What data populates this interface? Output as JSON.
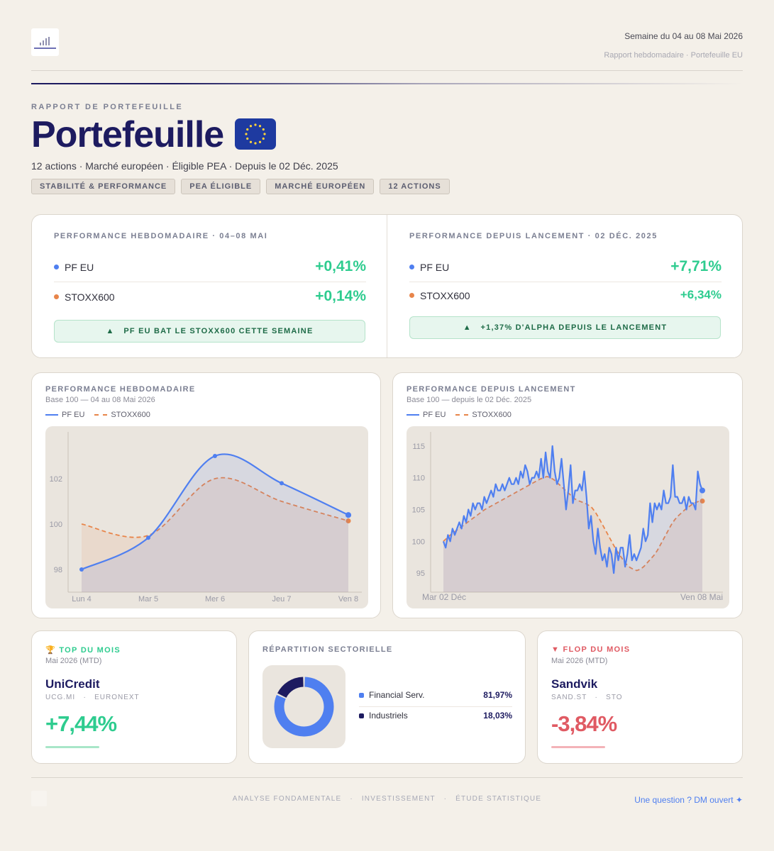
{
  "header": {
    "week": "Semaine du 04 au 08 Mai 2026",
    "subtitle": "Rapport hebdomadaire · Portefeuille EU"
  },
  "hero": {
    "eyebrow": "RAPPORT DE PORTEFEUILLE",
    "title": "Portefeuille",
    "flag_icon": "eu-flag-icon",
    "subtitle": "12 actions · Marché européen · Éligible PEA · Depuis le 02 Déc. 2025",
    "tags": [
      "STABILITÉ & PERFORMANCE",
      "PEA ÉLIGIBLE",
      "MARCHÉ EUROPÉEN",
      "12 ACTIONS"
    ]
  },
  "performance": {
    "weekly": {
      "label": "PERFORMANCE HEBDOMADAIRE · 04–08 MAI",
      "rows": [
        {
          "name": "PF EU",
          "value": "+0,41%"
        },
        {
          "name": "STOXX600",
          "value": "+0,14%"
        }
      ],
      "banner": "▲   PF EU BAT LE STOXX600 CETTE SEMAINE"
    },
    "since_launch": {
      "label": "PERFORMANCE DEPUIS LANCEMENT · 02 DÉC. 2025",
      "rows": [
        {
          "name": "PF EU",
          "value": "+7,71%"
        },
        {
          "name": "STOXX600",
          "value": "+6,34%"
        }
      ],
      "banner": "▲   +1,37% D'ALPHA DEPUIS LE LANCEMENT"
    }
  },
  "colors": {
    "pf": "#4f7ff0",
    "stoxx": "#e8854a",
    "positive": "#2ecc8f",
    "negative": "#e05a63",
    "navy": "#1d1b60"
  },
  "chart_data": [
    {
      "type": "line",
      "title": "PERFORMANCE HEBDOMADAIRE",
      "subtitle": "Base 100 — 04 au 08 Mai 2026",
      "categories": [
        "Lun 4",
        "Mar 5",
        "Mer 6",
        "Jeu 7",
        "Ven 8"
      ],
      "series": [
        {
          "name": "PF EU",
          "values": [
            98.0,
            99.4,
            103.0,
            101.8,
            100.4
          ]
        },
        {
          "name": "STOXX600",
          "values": [
            100.0,
            99.5,
            102.0,
            101.0,
            100.14
          ]
        }
      ],
      "ylim": [
        97,
        104
      ],
      "yticks": [
        98,
        100,
        102
      ],
      "grid": false,
      "legend": "top-left"
    },
    {
      "type": "line",
      "title": "PERFORMANCE DEPUIS LANCEMENT",
      "subtitle": "Base 100 — depuis le 02 Déc. 2025",
      "x_start_label": "Mar 02 Déc",
      "x_end_label": "Ven 08 Mai",
      "series": [
        {
          "name": "PF EU",
          "values": [
            100,
            99,
            101,
            100,
            102,
            101,
            102,
            103,
            102,
            104,
            103,
            105,
            104,
            106,
            105,
            106,
            106,
            105,
            107,
            106,
            107,
            108,
            107,
            109,
            108,
            108,
            109,
            108,
            109,
            110,
            109,
            109,
            110,
            109,
            111,
            110,
            112,
            111,
            109,
            110,
            110,
            111,
            110,
            113,
            110,
            114,
            111,
            110,
            115,
            111,
            109,
            110,
            113,
            109,
            105,
            108,
            112,
            106,
            108,
            108,
            109,
            108,
            111,
            107,
            102,
            104,
            100,
            98,
            102,
            99,
            97,
            98,
            96,
            99,
            98,
            95,
            99,
            97,
            99,
            99,
            96,
            98,
            101,
            97,
            98,
            97,
            98,
            99,
            102,
            100,
            101,
            106,
            103,
            106,
            105,
            106,
            105,
            108,
            106,
            106,
            107,
            112,
            107,
            107,
            106,
            106,
            107,
            105,
            107,
            106,
            106,
            105,
            111,
            109,
            108
          ]
        },
        {
          "name": "STOXX600",
          "values": [
            100,
            100.5,
            101,
            101.4,
            101.8,
            102.2,
            102.6,
            103,
            103.4,
            103.8,
            104.2,
            104.6,
            105,
            105.3,
            105.6,
            105.9,
            106.2,
            106.5,
            106.8,
            107.1,
            107.4,
            107.7,
            108,
            108.3,
            108.6,
            108.9,
            109.2,
            109.5,
            109.8,
            110,
            110.2,
            110,
            109.7,
            109.2,
            108.7,
            108.2,
            107.7,
            107.2,
            106.7,
            106.4,
            106.2,
            106,
            105.7,
            105.3,
            104.6,
            103.7,
            102.7,
            101.7,
            100.7,
            99.7,
            98.7,
            97.9,
            97.1,
            96.4,
            95.9,
            95.6,
            95.4,
            95.6,
            96,
            96.6,
            97.2,
            97.8,
            98.6,
            99.6,
            100.6,
            101.6,
            102.6,
            103.4,
            104,
            104.5,
            105,
            105.4,
            105.8,
            106.1,
            106.3,
            106.34
          ]
        }
      ],
      "ylim": [
        92,
        117
      ],
      "yticks": [
        95,
        100,
        105,
        110,
        115
      ],
      "grid": false,
      "legend": "top-left"
    }
  ],
  "charts_ui": {
    "weekly": {
      "title": "PERFORMANCE HEBDOMADAIRE",
      "subtitle": "Base 100 — 04 au 08 Mai 2026"
    },
    "launch": {
      "title": "PERFORMANCE DEPUIS LANCEMENT",
      "subtitle": "Base 100 — depuis le 02 Déc. 2025"
    },
    "legend": {
      "pf": "PF EU",
      "stoxx": "STOXX600"
    }
  },
  "top": {
    "icon": "trophy-icon",
    "title": "🏆 TOP DU MOIS",
    "period": "Mai 2026 (MTD)",
    "name": "UniCredit",
    "ticker": "UCG.MI   ·   EURONEXT",
    "value": "+7,44%"
  },
  "sectors": {
    "title": "RÉPARTITION SECTORIELLE",
    "items": [
      {
        "name": "Financial Serv.",
        "pct": "81,97%",
        "share": 0.8197,
        "color": "#4f7ff0"
      },
      {
        "name": "Industriels",
        "pct": "18,03%",
        "share": 0.1803,
        "color": "#1d1b60"
      }
    ]
  },
  "flop": {
    "icon": "triangle-down-icon",
    "title": "▼ FLOP DU MOIS",
    "period": "Mai 2026 (MTD)",
    "name": "Sandvik",
    "ticker": "SAND.ST   ·   STO",
    "value": "-3,84%"
  },
  "footer": {
    "center": "ANALYSE FONDAMENTALE   ·   INVESTISSEMENT   ·   ÉTUDE STATISTIQUE",
    "right": "Une question ? DM ouvert ✦"
  }
}
